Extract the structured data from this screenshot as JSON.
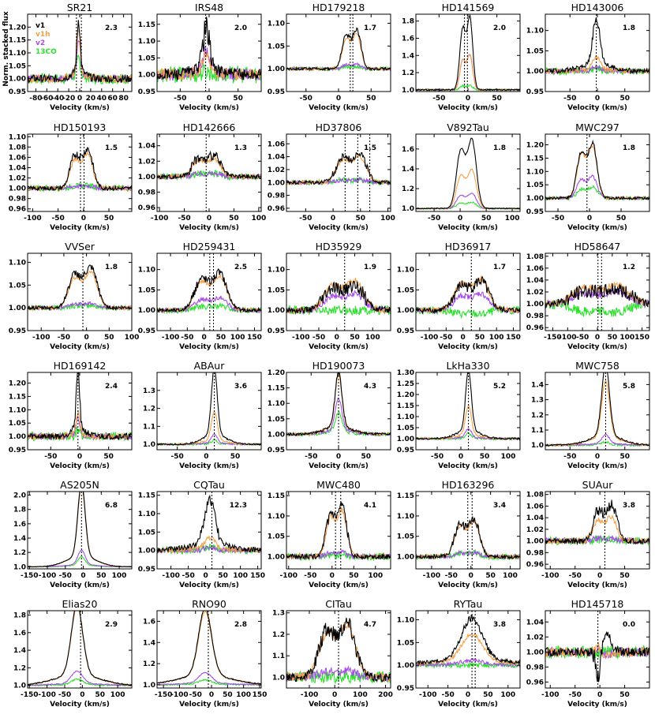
{
  "figure": {
    "ylabel": "Norm. stacked flux",
    "xlabel": "Velocity (km/s)"
  },
  "legend": [
    {
      "name": "v1",
      "color": "#000000"
    },
    {
      "name": "v1h",
      "color": "#f5a04a"
    },
    {
      "name": "v2",
      "color": "#a64ee8"
    },
    {
      "name": "13CO",
      "color": "#2ee02e"
    }
  ],
  "chart_data": [
    {
      "type": "line",
      "title": "SR21",
      "ratio": "2.3",
      "xlim": [
        -95,
        95
      ],
      "ylim": [
        0.95,
        1.25
      ],
      "xticks": [
        -80,
        -60,
        -40,
        -20,
        0,
        20,
        40,
        60,
        80
      ],
      "yticks": [
        0.95,
        1.0,
        1.05,
        1.1,
        1.15,
        1.2
      ],
      "center": -2,
      "width": 3,
      "peaks": {
        "v1": 0.2,
        "v1h": 0.17,
        "v2": 0.14,
        "co13": 0.07
      },
      "shape": "single",
      "noise": 0.015,
      "vlines": [
        -6,
        3
      ],
      "legend": true
    },
    {
      "type": "line",
      "title": "IRS48",
      "ratio": "2.0",
      "xlim": [
        -90,
        90
      ],
      "ylim": [
        0.95,
        1.18
      ],
      "xticks": [
        -50,
        0,
        50
      ],
      "yticks": [
        0.95,
        1.0,
        1.05,
        1.1,
        1.15
      ],
      "center": -5,
      "width": 6,
      "peaks": {
        "v1": 0.12,
        "v1h": 0.05,
        "v2": 0.06,
        "co13": 0.01
      },
      "shape": "single",
      "noise": 0.018,
      "vlines": [
        -6
      ],
      "legend": false
    },
    {
      "type": "line",
      "title": "HD179218",
      "ratio": "1.7",
      "xlim": [
        -80,
        80
      ],
      "ylim": [
        0.95,
        1.12
      ],
      "xticks": [
        -50,
        0,
        50
      ],
      "yticks": [
        0.95,
        1.0,
        1.05,
        1.1
      ],
      "center": 20,
      "width": 9,
      "peaks": {
        "v1": 0.085,
        "v1h": 0.075,
        "v2": 0.01,
        "co13": 0.005
      },
      "shape": "double",
      "noise": 0.003,
      "vlines": [
        18,
        22
      ],
      "legend": false
    },
    {
      "type": "line",
      "title": "HD141569",
      "ratio": "2.0",
      "xlim": [
        -90,
        90
      ],
      "ylim": [
        0.98,
        1.88
      ],
      "xticks": [
        -50,
        0,
        50
      ],
      "yticks": [
        1.0,
        1.2,
        1.4,
        1.6,
        1.8
      ],
      "center": -3,
      "width": 7,
      "peaks": {
        "v1": 0.83,
        "v1h": 0.4,
        "v2": 0.4,
        "co13": 0.05
      },
      "shape": "double",
      "noise": 0.008,
      "vlines": [
        -6,
        -1
      ],
      "legend": false
    },
    {
      "type": "line",
      "title": "HD143006",
      "ratio": "1.8",
      "xlim": [
        -95,
        95
      ],
      "ylim": [
        0.95,
        1.14
      ],
      "xticks": [
        -50,
        0,
        50
      ],
      "yticks": [
        0.95,
        1.0,
        1.05,
        1.1
      ],
      "center": -2,
      "width": 7,
      "peaks": {
        "v1": 0.11,
        "v1h": 0.03,
        "v2": 0.01,
        "co13": 0.005
      },
      "shape": "single",
      "noise": 0.006,
      "vlines": [
        -2
      ],
      "legend": false
    },
    {
      "type": "line",
      "title": "HD150193",
      "ratio": "1.5",
      "xlim": [
        -110,
        95
      ],
      "ylim": [
        0.955,
        1.105
      ],
      "xticks": [
        -100,
        -50,
        0,
        50
      ],
      "yticks": [
        0.96,
        0.98,
        1.0,
        1.02,
        1.04,
        1.06,
        1.08,
        1.1
      ],
      "center": -4,
      "width": 14,
      "peaks": {
        "v1": 0.075,
        "v1h": 0.065,
        "v2": 0.005,
        "co13": 0.005
      },
      "shape": "double",
      "noise": 0.004,
      "vlines": [
        -6,
        1
      ],
      "legend": false
    },
    {
      "type": "line",
      "title": "HD142666",
      "ratio": "1.3",
      "xlim": [
        -105,
        105
      ],
      "ylim": [
        0.955,
        1.055
      ],
      "xticks": [
        -100,
        -50,
        0,
        50,
        100
      ],
      "yticks": [
        0.96,
        0.98,
        1.0,
        1.02,
        1.04
      ],
      "center": -6,
      "width": 18,
      "peaks": {
        "v1": 0.027,
        "v1h": 0.023,
        "v2": 0.004,
        "co13": 0.004
      },
      "shape": "double",
      "noise": 0.003,
      "vlines": [
        -6
      ],
      "legend": false
    },
    {
      "type": "line",
      "title": "HD37806",
      "ratio": "1.5",
      "xlim": [
        -85,
        105
      ],
      "ylim": [
        0.955,
        1.075
      ],
      "xticks": [
        -50,
        0,
        50,
        100
      ],
      "yticks": [
        0.96,
        0.98,
        1.0,
        1.02,
        1.04,
        1.06
      ],
      "center": 33,
      "width": 17,
      "peaks": {
        "v1": 0.045,
        "v1h": 0.04,
        "v2": 0.004,
        "co13": 0.004
      },
      "shape": "double",
      "noise": 0.003,
      "vlines": [
        22,
        45,
        67
      ],
      "legend": false
    },
    {
      "type": "line",
      "title": "V892Tau",
      "ratio": "1.8",
      "xlim": [
        -85,
        115
      ],
      "ylim": [
        0.97,
        1.75
      ],
      "xticks": [
        -50,
        0,
        50,
        100
      ],
      "yticks": [
        1.0,
        1.2,
        1.4,
        1.6
      ],
      "center": 12,
      "width": 12,
      "peaks": {
        "v1": 0.68,
        "v1h": 0.38,
        "v2": 0.15,
        "co13": 0.06
      },
      "shape": "double",
      "noise": 0.005,
      "vlines": [],
      "legend": false
    },
    {
      "type": "line",
      "title": "MWC297",
      "ratio": "1.8",
      "xlim": [
        -70,
        95
      ],
      "ylim": [
        0.95,
        1.24
      ],
      "xticks": [
        -50,
        0,
        50
      ],
      "yticks": [
        0.95,
        1.0,
        1.05,
        1.1,
        1.15,
        1.2
      ],
      "center": -4,
      "width": 10,
      "peaks": {
        "v1": 0.2,
        "v1h": 0.19,
        "v2": 0.08,
        "co13": 0.04
      },
      "shape": "double",
      "noise": 0.005,
      "vlines": [
        -4
      ],
      "legend": false
    },
    {
      "type": "line",
      "title": "VVSer",
      "ratio": "1.8",
      "xlim": [
        -130,
        100
      ],
      "ylim": [
        0.95,
        1.12
      ],
      "xticks": [
        -100,
        -50,
        0,
        50,
        100
      ],
      "yticks": [
        0.95,
        1.0,
        1.05,
        1.1
      ],
      "center": -8,
      "width": 20,
      "peaks": {
        "v1": 0.085,
        "v1h": 0.075,
        "v2": 0.01,
        "co13": 0.005
      },
      "shape": "double",
      "noise": 0.004,
      "vlines": [
        -8
      ],
      "legend": false
    },
    {
      "type": "line",
      "title": "HD259431",
      "ratio": "2.5",
      "xlim": [
        -140,
        170
      ],
      "ylim": [
        0.95,
        1.14
      ],
      "xticks": [
        -100,
        -50,
        0,
        50,
        100,
        150
      ],
      "yticks": [
        0.95,
        1.0,
        1.05,
        1.1
      ],
      "center": 20,
      "width": 30,
      "peaks": {
        "v1": 0.09,
        "v1h": 0.08,
        "v2": 0.03,
        "co13": 0.01
      },
      "shape": "double",
      "noise": 0.005,
      "vlines": [
        17,
        28
      ],
      "legend": false
    },
    {
      "type": "line",
      "title": "HD35929",
      "ratio": "1.9",
      "xlim": [
        -140,
        150
      ],
      "ylim": [
        0.95,
        1.14
      ],
      "xticks": [
        -100,
        -50,
        0,
        50,
        100
      ],
      "yticks": [
        0.95,
        1.0,
        1.05,
        1.1
      ],
      "center": 20,
      "width": 35,
      "peaks": {
        "v1": 0.06,
        "v1h": 0.07,
        "v2": 0.04,
        "co13": 0.0
      },
      "shape": "double",
      "noise": 0.008,
      "vlines": [
        22
      ],
      "legend": false
    },
    {
      "type": "line",
      "title": "HD36917",
      "ratio": "1.7",
      "xlim": [
        -140,
        170
      ],
      "ylim": [
        0.95,
        1.14
      ],
      "xticks": [
        -100,
        -50,
        0,
        50,
        100,
        150
      ],
      "yticks": [
        0.95,
        1.0,
        1.05,
        1.1
      ],
      "center": 25,
      "width": 32,
      "peaks": {
        "v1": 0.07,
        "v1h": 0.075,
        "v2": 0.04,
        "co13": -0.01
      },
      "shape": "double",
      "noise": 0.007,
      "vlines": [
        25
      ],
      "legend": false
    },
    {
      "type": "line",
      "title": "HD58647",
      "ratio": "1.2",
      "xlim": [
        -175,
        175
      ],
      "ylim": [
        0.955,
        1.085
      ],
      "xticks": [
        -150,
        -100,
        -50,
        0,
        50,
        100,
        150
      ],
      "yticks": [
        0.96,
        0.98,
        1.0,
        1.02,
        1.04,
        1.06,
        1.08
      ],
      "center": 10,
      "width": 60,
      "peaks": {
        "v1": 0.025,
        "v1h": 0.03,
        "v2": 0.02,
        "co13": -0.015
      },
      "shape": "double",
      "noise": 0.006,
      "vlines": [
        2,
        14
      ],
      "legend": false
    },
    {
      "type": "line",
      "title": "HD169142",
      "ratio": "2.4",
      "xlim": [
        -90,
        90
      ],
      "ylim": [
        0.95,
        1.24
      ],
      "xticks": [
        -50,
        0,
        50
      ],
      "yticks": [
        0.95,
        1.0,
        1.05,
        1.1,
        1.15,
        1.2
      ],
      "center": -3,
      "width": 3,
      "peaks": {
        "v1": 0.22,
        "v1h": 0.08,
        "v2": 0.06,
        "co13": 0.02
      },
      "shape": "single",
      "noise": 0.012,
      "vlines": [
        -3
      ],
      "legend": false
    },
    {
      "type": "line",
      "title": "ABAur",
      "ratio": "3.6",
      "xlim": [
        -85,
        95
      ],
      "ylim": [
        0.97,
        1.4
      ],
      "xticks": [
        -50,
        0,
        50
      ],
      "yticks": [
        1.0,
        1.1,
        1.2,
        1.3
      ],
      "center": 14,
      "width": 5,
      "peaks": {
        "v1": 0.37,
        "v1h": 0.16,
        "v2": 0.05,
        "co13": 0.02
      },
      "shape": "single",
      "noise": 0.004,
      "vlines": [
        14
      ],
      "legend": false
    },
    {
      "type": "line",
      "title": "HD190073",
      "ratio": "4.3",
      "xlim": [
        -95,
        95
      ],
      "ylim": [
        0.95,
        1.2
      ],
      "xticks": [
        -50,
        0,
        50
      ],
      "yticks": [
        0.95,
        1.0,
        1.05,
        1.1,
        1.15,
        1.2
      ],
      "center": 0,
      "width": 6,
      "peaks": {
        "v1": 0.18,
        "v1h": 0.17,
        "v2": 0.1,
        "co13": 0.06
      },
      "shape": "single",
      "noise": 0.004,
      "vlines": [
        0
      ],
      "legend": false
    },
    {
      "type": "line",
      "title": "LkHa330",
      "ratio": "5.2",
      "xlim": [
        -95,
        125
      ],
      "ylim": [
        0.95,
        1.3
      ],
      "xticks": [
        -50,
        0,
        50,
        100
      ],
      "yticks": [
        0.95,
        1.0,
        1.05,
        1.1,
        1.15,
        1.2,
        1.25,
        1.3
      ],
      "center": 16,
      "width": 6,
      "peaks": {
        "v1": 0.27,
        "v1h": 0.13,
        "v2": 0.04,
        "co13": 0.02
      },
      "shape": "single",
      "noise": 0.004,
      "vlines": [
        16
      ],
      "legend": false
    },
    {
      "type": "line",
      "title": "MWC758",
      "ratio": "5.8",
      "xlim": [
        -95,
        95
      ],
      "ylim": [
        0.97,
        1.48
      ],
      "xticks": [
        -50,
        0,
        50
      ],
      "yticks": [
        1.0,
        1.1,
        1.2,
        1.3,
        1.4
      ],
      "center": 15,
      "width": 7,
      "peaks": {
        "v1": 0.46,
        "v1h": 0.37,
        "v2": 0.06,
        "co13": 0.02
      },
      "shape": "single",
      "noise": 0.005,
      "vlines": [
        15
      ],
      "legend": false
    },
    {
      "type": "line",
      "title": "AS205N",
      "ratio": "6.8",
      "xlim": [
        -155,
        135
      ],
      "ylim": [
        0.97,
        2.05
      ],
      "xticks": [
        -150,
        -100,
        -50,
        0,
        50,
        100
      ],
      "yticks": [
        1.0,
        1.2,
        1.4,
        1.6,
        1.8,
        2.0
      ],
      "center": -5,
      "width": 10,
      "peaks": {
        "v1": 1.02,
        "v1h": 0.98,
        "v2": 0.2,
        "co13": 0.12
      },
      "shape": "single",
      "noise": 0.003,
      "vlines": [
        -5
      ],
      "legend": false
    },
    {
      "type": "line",
      "title": "CQTau",
      "ratio": "12.3",
      "xlim": [
        -140,
        160
      ],
      "ylim": [
        0.95,
        1.16
      ],
      "xticks": [
        -100,
        -50,
        0,
        50,
        100,
        150
      ],
      "yticks": [
        0.95,
        1.0,
        1.05,
        1.1,
        1.15
      ],
      "center": 12,
      "width": 15,
      "peaks": {
        "v1": 0.12,
        "v1h": 0.03,
        "v2": 0.008,
        "co13": 0.008
      },
      "shape": "single",
      "noise": 0.007,
      "vlines": [
        18
      ],
      "legend": false
    },
    {
      "type": "line",
      "title": "MWC480",
      "ratio": "4.1",
      "xlim": [
        -105,
        135
      ],
      "ylim": [
        0.97,
        1.16
      ],
      "xticks": [
        -100,
        -50,
        0,
        50,
        100
      ],
      "yticks": [
        1.0,
        1.05,
        1.1,
        1.15
      ],
      "center": 10,
      "width": 15,
      "peaks": {
        "v1": 0.12,
        "v1h": 0.11,
        "v2": 0.01,
        "co13": 0.005
      },
      "shape": "double",
      "noise": 0.006,
      "vlines": [
        8,
        20
      ],
      "legend": false
    },
    {
      "type": "line",
      "title": "HD163296",
      "ratio": "3.4",
      "xlim": [
        -140,
        125
      ],
      "ylim": [
        0.97,
        1.16
      ],
      "xticks": [
        -100,
        -50,
        0,
        50,
        100
      ],
      "yticks": [
        1.0,
        1.05,
        1.1,
        1.15
      ],
      "center": -10,
      "width": 20,
      "peaks": {
        "v1": 0.09,
        "v1h": 0.085,
        "v2": 0.01,
        "co13": 0.01
      },
      "shape": "double",
      "noise": 0.005,
      "vlines": [
        -8,
        3
      ],
      "legend": false
    },
    {
      "type": "line",
      "title": "SUAur",
      "ratio": "3.8",
      "xlim": [
        -110,
        100
      ],
      "ylim": [
        0.952,
        1.085
      ],
      "xticks": [
        -100,
        -50,
        0,
        50
      ],
      "yticks": [
        0.96,
        0.98,
        1.0,
        1.02,
        1.04,
        1.06,
        1.08
      ],
      "center": 10,
      "width": 15,
      "peaks": {
        "v1": 0.06,
        "v1h": 0.04,
        "v2": 0.005,
        "co13": 0.003
      },
      "shape": "double",
      "noise": 0.005,
      "vlines": [
        10
      ],
      "legend": false
    },
    {
      "type": "line",
      "title": "Elias20",
      "ratio": "2.9",
      "xlim": [
        -155,
        140
      ],
      "ylim": [
        0.97,
        1.85
      ],
      "xticks": [
        -150,
        -100,
        -50,
        0,
        50,
        100
      ],
      "yticks": [
        1.0,
        1.2,
        1.4,
        1.6,
        1.8
      ],
      "center": -15,
      "width": 16,
      "peaks": {
        "v1": 0.8,
        "v1h": 0.78,
        "v2": 0.14,
        "co13": 0.06
      },
      "shape": "single",
      "noise": 0.006,
      "vlines": [
        -5
      ],
      "legend": false
    },
    {
      "type": "line",
      "title": "RNO90",
      "ratio": "2.8",
      "xlim": [
        -170,
        155
      ],
      "ylim": [
        0.97,
        1.7
      ],
      "xticks": [
        -150,
        -100,
        -50,
        0,
        50,
        100,
        150
      ],
      "yticks": [
        1.0,
        1.2,
        1.4,
        1.6
      ],
      "center": -20,
      "width": 20,
      "peaks": {
        "v1": 0.63,
        "v1h": 0.6,
        "v2": 0.1,
        "co13": 0.04
      },
      "shape": "single",
      "noise": 0.005,
      "vlines": [
        -10
      ],
      "legend": false
    },
    {
      "type": "line",
      "title": "CITau",
      "ratio": "4.7",
      "xlim": [
        -190,
        220
      ],
      "ylim": [
        0.95,
        1.31
      ],
      "xticks": [
        -100,
        0,
        100,
        200
      ],
      "yticks": [
        1.0,
        1.1,
        1.2,
        1.3
      ],
      "center": 10,
      "width": 45,
      "peaks": {
        "v1": 0.25,
        "v1h": 0.24,
        "v2": 0.03,
        "co13": 0.0
      },
      "shape": "double",
      "noise": 0.02,
      "vlines": [
        15
      ],
      "legend": false
    },
    {
      "type": "line",
      "title": "RYTau",
      "ratio": "3.8",
      "xlim": [
        -130,
        130
      ],
      "ylim": [
        0.95,
        1.12
      ],
      "xticks": [
        -100,
        -50,
        0,
        50,
        100
      ],
      "yticks": [
        0.95,
        1.0,
        1.05,
        1.1
      ],
      "center": 10,
      "width": 25,
      "peaks": {
        "v1": 0.09,
        "v1h": 0.06,
        "v2": 0.01,
        "co13": 0.0
      },
      "shape": "single",
      "noise": 0.004,
      "vlines": [
        10,
        18
      ],
      "legend": false
    },
    {
      "type": "line",
      "title": "HD145718",
      "ratio": "0.0",
      "xlim": [
        -110,
        100
      ],
      "ylim": [
        0.952,
        1.055
      ],
      "xticks": [
        -100,
        -50,
        0,
        50
      ],
      "yticks": [
        0.96,
        0.98,
        1.0,
        1.02,
        1.04
      ],
      "center": -3,
      "width": 5,
      "peaks": {
        "v1": -0.04,
        "v1h": 0.01,
        "v2": 0.005,
        "co13": 0.0
      },
      "shape": "absorb",
      "noise": 0.006,
      "vlines": [
        -4
      ],
      "legend": false
    }
  ]
}
